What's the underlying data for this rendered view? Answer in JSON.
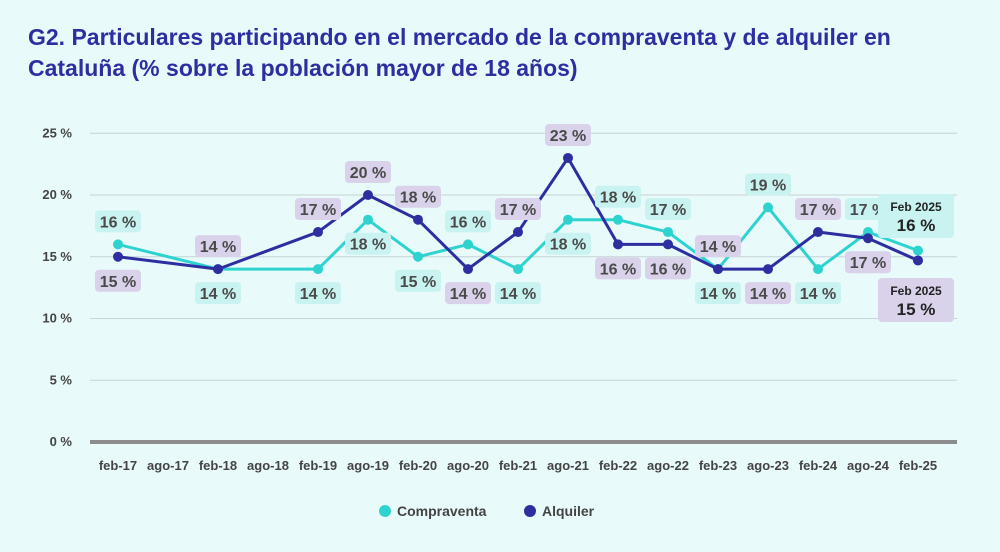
{
  "chart_data": {
    "type": "line",
    "title": "G2. Particulares participando en el mercado de la compraventa y de alquiler en Cataluña (% sobre la población mayor de 18 años)",
    "xlabel": "",
    "ylabel": "",
    "ylim": [
      0,
      25
    ],
    "yticks": [
      0,
      5,
      10,
      15,
      20,
      25
    ],
    "ytick_labels": [
      "0 %",
      "5 %",
      "10 %",
      "15 %",
      "20 %",
      "25 %"
    ],
    "x_tick_labels": [
      "feb-17",
      "ago-17",
      "feb-18",
      "ago-18",
      "feb-19",
      "ago-19",
      "feb-20",
      "ago-20",
      "feb-21",
      "ago-21",
      "feb-22",
      "ago-22",
      "feb-23",
      "ago-23",
      "feb-24",
      "ago-24",
      "feb-25"
    ],
    "grid": true,
    "legend_position": "bottom",
    "series": [
      {
        "name": "Compraventa",
        "color": "#2ed3d0",
        "label_bg": "#c9f3f0",
        "points": [
          {
            "x": 0,
            "y": 16,
            "label": "16 %",
            "pos": "above"
          },
          {
            "x": 2,
            "y": 14,
            "label": "14 %",
            "pos": "below"
          },
          {
            "x": 4,
            "y": 14,
            "label": "14 %",
            "pos": "below"
          },
          {
            "x": 5,
            "y": 18,
            "label": "18 %",
            "pos": "below"
          },
          {
            "x": 6,
            "y": 15,
            "label": "15 %",
            "pos": "below"
          },
          {
            "x": 7,
            "y": 16,
            "label": "16 %",
            "pos": "above"
          },
          {
            "x": 8,
            "y": 14,
            "label": "14 %",
            "pos": "below"
          },
          {
            "x": 9,
            "y": 18,
            "label": "18 %",
            "pos": "below"
          },
          {
            "x": 10,
            "y": 18,
            "label": "18 %",
            "pos": "above"
          },
          {
            "x": 11,
            "y": 17,
            "label": "17 %",
            "pos": "above"
          },
          {
            "x": 12,
            "y": 14,
            "label": "14 %",
            "pos": "below"
          },
          {
            "x": 13,
            "y": 19,
            "label": "19 %",
            "pos": "above"
          },
          {
            "x": 14,
            "y": 14,
            "label": "14 %",
            "pos": "below"
          },
          {
            "x": 15,
            "y": 17,
            "label": "17 %",
            "pos": "above"
          },
          {
            "x": 16,
            "y": 15.5,
            "label": "",
            "pos": "none"
          }
        ]
      },
      {
        "name": "Alquiler",
        "color": "#2d2fa0",
        "label_bg": "#d9d2ea",
        "points": [
          {
            "x": 0,
            "y": 15,
            "label": "15 %",
            "pos": "below"
          },
          {
            "x": 2,
            "y": 14,
            "label": "14 %",
            "pos": "above"
          },
          {
            "x": 4,
            "y": 17,
            "label": "17 %",
            "pos": "above"
          },
          {
            "x": 5,
            "y": 20,
            "label": "20 %",
            "pos": "above"
          },
          {
            "x": 6,
            "y": 18,
            "label": "18 %",
            "pos": "above"
          },
          {
            "x": 7,
            "y": 14,
            "label": "14 %",
            "pos": "below"
          },
          {
            "x": 8,
            "y": 17,
            "label": "17 %",
            "pos": "above"
          },
          {
            "x": 9,
            "y": 23,
            "label": "23 %",
            "pos": "above"
          },
          {
            "x": 10,
            "y": 16,
            "label": "16 %",
            "pos": "below"
          },
          {
            "x": 11,
            "y": 16,
            "label": "16 %",
            "pos": "below"
          },
          {
            "x": 12,
            "y": 14,
            "label": "14 %",
            "pos": "above"
          },
          {
            "x": 13,
            "y": 14,
            "label": "14 %",
            "pos": "below"
          },
          {
            "x": 14,
            "y": 17,
            "label": "17 %",
            "pos": "above"
          },
          {
            "x": 15,
            "y": 16.5,
            "label": "17 %",
            "pos": "below"
          },
          {
            "x": 16,
            "y": 14.7,
            "label": "",
            "pos": "none"
          }
        ]
      }
    ],
    "annotations": [
      {
        "series": "Compraventa",
        "line1": "Feb 2025",
        "line2": "16 %"
      },
      {
        "series": "Alquiler",
        "line1": "Feb 2025",
        "line2": "15 %"
      }
    ]
  }
}
